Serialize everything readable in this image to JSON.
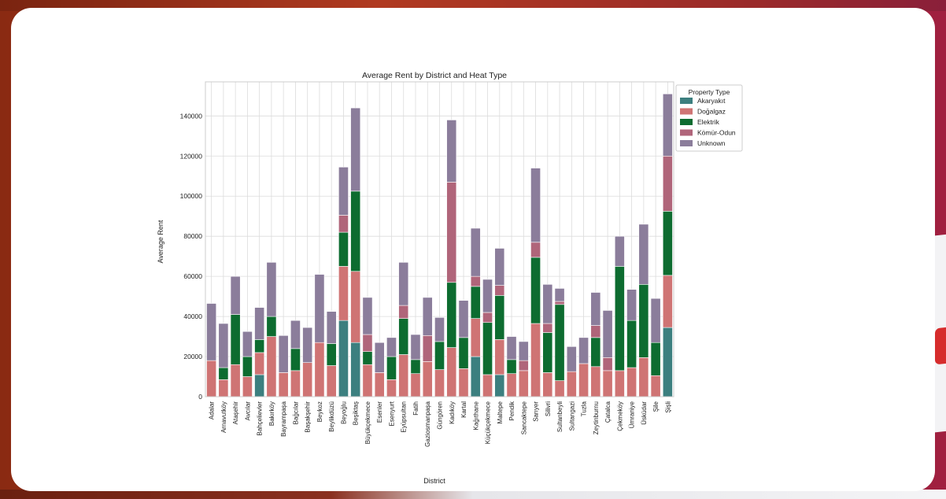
{
  "chart_data": {
    "type": "bar",
    "stacked": true,
    "title": "Average Rent by District and Heat Type",
    "xlabel": "District",
    "ylabel": "Average Rent",
    "ylim": [
      0,
      157000
    ],
    "yticks": [
      0,
      20000,
      40000,
      60000,
      80000,
      100000,
      120000,
      140000
    ],
    "grid": true,
    "legend": {
      "title": "Property Type",
      "position": "outside-top-right"
    },
    "categories": [
      "Adalar",
      "Arnavutköy",
      "Ataşehir",
      "Avcılar",
      "Bahçelievler",
      "Bakırköy",
      "Bayrampaşa",
      "Bağcılar",
      "Başakşehir",
      "Beykoz",
      "Beylikdüzü",
      "Beyoğlu",
      "Beşiktaş",
      "Büyükçekmece",
      "Esenler",
      "Esenyurt",
      "Eyüpsultan",
      "Fatih",
      "Gaziosmanpaşa",
      "Güngören",
      "Kadıköy",
      "Kartal",
      "Kağıthane",
      "Küçükçekmece",
      "Maltepe",
      "Pendik",
      "Sancaktepe",
      "Sarıyer",
      "Silivri",
      "Sultanbeyli",
      "Sultangazi",
      "Tuzla",
      "Zeytinburnu",
      "Çatalca",
      "Çekmeköy",
      "Ümraniye",
      "Üsküdar",
      "Şile",
      "Şişli"
    ],
    "series": [
      {
        "name": "Akaryakıt",
        "color": "#3c7f7f",
        "values": [
          0,
          0,
          0,
          0,
          11000,
          0,
          0,
          0,
          0,
          0,
          0,
          38000,
          27000,
          0,
          0,
          0,
          0,
          0,
          0,
          0,
          0,
          0,
          20000,
          0,
          11000,
          0,
          0,
          0,
          0,
          0,
          0,
          0,
          0,
          0,
          0,
          0,
          0,
          0,
          34500
        ]
      },
      {
        "name": "Doğalgaz",
        "color": "#cf7474",
        "values": [
          18000,
          8500,
          16000,
          10000,
          11000,
          30000,
          12000,
          13000,
          17000,
          27000,
          15500,
          27000,
          35500,
          16000,
          12000,
          8500,
          21000,
          11500,
          17500,
          13500,
          24500,
          14000,
          19000,
          11000,
          17500,
          11500,
          13000,
          36500,
          12000,
          8000,
          12500,
          16500,
          15000,
          13000,
          13000,
          14500,
          19500,
          10500,
          26000
        ]
      },
      {
        "name": "Elektrik",
        "color": "#0d6c30",
        "values": [
          0,
          6000,
          25000,
          10000,
          6500,
          10000,
          0,
          11000,
          0,
          0,
          11000,
          17000,
          40000,
          6500,
          0,
          11500,
          18000,
          7000,
          0,
          14000,
          32500,
          15500,
          16000,
          26000,
          22000,
          7000,
          0,
          33000,
          20000,
          38000,
          0,
          0,
          14500,
          0,
          52000,
          23500,
          36500,
          16500,
          32000
        ]
      },
      {
        "name": "Kömür-Odun",
        "color": "#b0657a",
        "values": [
          0,
          0,
          0,
          0,
          0,
          0,
          0,
          0,
          0,
          0,
          0,
          8500,
          0,
          8500,
          0,
          0,
          6500,
          0,
          13000,
          0,
          50000,
          0,
          5000,
          5000,
          5000,
          0,
          5000,
          7500,
          4500,
          1500,
          0,
          0,
          6000,
          6500,
          0,
          0,
          0,
          0,
          27500
        ]
      },
      {
        "name": "Unknown",
        "color": "#8b7d9b",
        "values": [
          28500,
          22000,
          19000,
          12500,
          16000,
          27000,
          18500,
          14000,
          17500,
          34000,
          16000,
          24000,
          41500,
          18500,
          15000,
          9500,
          21500,
          12500,
          19000,
          12000,
          31000,
          18500,
          24000,
          16500,
          18500,
          11500,
          9500,
          37000,
          19500,
          6500,
          12500,
          13000,
          16500,
          23500,
          15000,
          15500,
          30000,
          22000,
          31000
        ]
      }
    ]
  }
}
